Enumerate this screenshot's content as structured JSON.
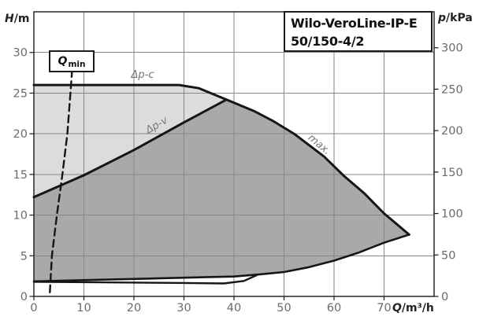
{
  "title_box": {
    "line1": "Wilo-VeroLine-IP-E",
    "line2": "50/150-4/2"
  },
  "colors": {
    "light_region": "#dcdcdc",
    "dark_region": "#a9a9a9",
    "grid": "#878787",
    "curve": "#161616",
    "border": "#1a1a1a",
    "tick_text": "#6b6b6b",
    "curve_label_text": "#757575",
    "axis_text": "#222222"
  },
  "chart_data": {
    "type": "area",
    "title": "Wilo-VeroLine-IP-E 50/150-4/2",
    "grid": true,
    "legend": "none",
    "x_axis": {
      "var": "Q",
      "unit": "/m³/h",
      "ticks": [
        0,
        10,
        20,
        30,
        40,
        50,
        60,
        70
      ],
      "range": [
        0,
        80
      ]
    },
    "y_axis_left": {
      "var": "H",
      "unit": "/m",
      "ticks": [
        0,
        5,
        10,
        15,
        20,
        25,
        30
      ],
      "range": [
        0,
        35
      ]
    },
    "y_axis_right": {
      "var": "p",
      "unit": "/kPa",
      "ticks": [
        0,
        50,
        100,
        150,
        200,
        250,
        300
      ],
      "kpa_per_m": 9.81
    },
    "curves": {
      "max_speed": {
        "label": "max.",
        "style": "solid",
        "points": [
          [
            0,
            26
          ],
          [
            29,
            26
          ],
          [
            33,
            25.6
          ],
          [
            38.5,
            24.2
          ],
          [
            44,
            22.8
          ],
          [
            48,
            21.5
          ],
          [
            52,
            20
          ],
          [
            55,
            18.6
          ],
          [
            58,
            17.2
          ],
          [
            62,
            14.8
          ],
          [
            66,
            12.7
          ],
          [
            70,
            10.2
          ],
          [
            72.5,
            8.9
          ],
          [
            75,
            7.6
          ]
        ]
      },
      "dp_v": {
        "label": "Δp-v",
        "style": "solid",
        "points": [
          [
            0,
            12.2
          ],
          [
            10,
            14.9
          ],
          [
            20,
            18
          ],
          [
            30,
            21.4
          ],
          [
            38.5,
            24.2
          ]
        ]
      },
      "lower_boundary": {
        "label": "",
        "style": "solid",
        "points": [
          [
            0,
            1.85
          ],
          [
            10,
            2
          ],
          [
            20,
            2.15
          ],
          [
            30,
            2.3
          ],
          [
            40,
            2.45
          ],
          [
            45,
            2.7
          ],
          [
            50,
            3
          ],
          [
            55,
            3.6
          ],
          [
            60,
            4.4
          ],
          [
            65,
            5.4
          ],
          [
            70,
            6.6
          ],
          [
            75,
            7.6
          ]
        ]
      },
      "min_speed": {
        "label": "",
        "style": "solid",
        "points": [
          [
            0,
            1.8
          ],
          [
            10,
            1.75
          ],
          [
            20,
            1.7
          ],
          [
            30,
            1.65
          ],
          [
            38,
            1.6
          ],
          [
            42,
            1.9
          ],
          [
            44.5,
            2.6
          ]
        ]
      },
      "q_min": {
        "label": "Qmin",
        "style": "dashed",
        "points": [
          [
            3.2,
            0.5
          ],
          [
            3.6,
            5
          ],
          [
            4.6,
            10
          ],
          [
            5.7,
            15
          ],
          [
            6.7,
            20
          ],
          [
            7.3,
            25
          ],
          [
            7.7,
            28.3
          ]
        ]
      }
    },
    "labels": {
      "dp_c": "Δp-c",
      "dp_v": "Δp-v",
      "max": "max.",
      "qmin_main": "Q",
      "qmin_sub": "min"
    }
  }
}
